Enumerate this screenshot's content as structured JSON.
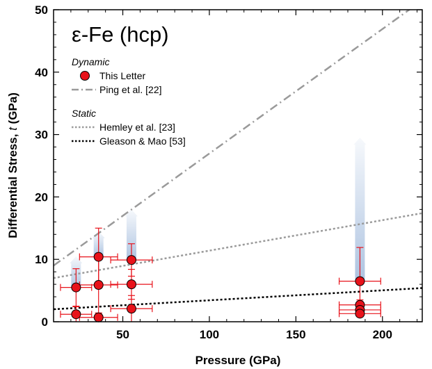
{
  "chart_data": {
    "type": "scatter",
    "title": "ε-Fe (hcp)",
    "xlabel": "Pressure (GPa)",
    "ylabel_main": "Differential Stress, ",
    "ylabel_var": "t",
    "ylabel_unit": " (GPa)",
    "xlim": [
      10,
      223
    ],
    "ylim": [
      0,
      50
    ],
    "xticks": [
      50,
      100,
      150,
      200
    ],
    "yticks": [
      0,
      10,
      20,
      30,
      40,
      50
    ],
    "grid": false,
    "legend": {
      "position": "top-left",
      "dynamic_heading": "Dynamic",
      "static_heading": "Static",
      "entries": {
        "this_letter": "This Letter",
        "ping": "Ping et al. [22]",
        "hemley": "Hemley et al. [23]",
        "gleason": "Gleason & Mao [53]"
      }
    },
    "points": [
      {
        "x": 23,
        "y": 5.5,
        "xerr": 9,
        "yerr": 3
      },
      {
        "x": 23,
        "y": 1.2,
        "xerr": 9,
        "yerr": 1.2
      },
      {
        "x": 36,
        "y": 10.4,
        "xerr": 11,
        "yerr": 4.6
      },
      {
        "x": 36,
        "y": 5.9,
        "xerr": 11,
        "yerr": 4.5
      },
      {
        "x": 36,
        "y": 0.7,
        "xerr": 11,
        "yerr": 0.7
      },
      {
        "x": 55,
        "y": 9.9,
        "xerr": 12,
        "yerr": 2.6
      },
      {
        "x": 55,
        "y": 6.0,
        "xerr": 12,
        "yerr": 2.4
      },
      {
        "x": 55,
        "y": 2.1,
        "xerr": 12,
        "yerr": 2.1
      },
      {
        "x": 187,
        "y": 6.5,
        "xerr": 12,
        "yerr": 5.4
      },
      {
        "x": 187,
        "y": 2.7,
        "xerr": 12,
        "yerr": 0.8
      },
      {
        "x": 187,
        "y": 1.9,
        "xerr": 12,
        "yerr": 0.6
      },
      {
        "x": 187,
        "y": 1.3,
        "xerr": 12,
        "yerr": 0.5
      }
    ],
    "arrows": [
      {
        "x": 23,
        "y_from": 5.5,
        "y_to": 10.5
      },
      {
        "x": 36,
        "y_from": 10.4,
        "y_to": 14.5
      },
      {
        "x": 55,
        "y_from": 9.9,
        "y_to": 18.0
      },
      {
        "x": 187,
        "y_from": 6.5,
        "y_to": 29.5
      }
    ],
    "lines": [
      {
        "key": "ping",
        "x": [
          10,
          223
        ],
        "y": [
          9.0,
          51.5
        ]
      },
      {
        "key": "hemley",
        "x": [
          10,
          223
        ],
        "y": [
          7.0,
          17.4
        ]
      },
      {
        "key": "gleason",
        "x": [
          10,
          223
        ],
        "y": [
          2.0,
          5.4
        ]
      }
    ],
    "colors": {
      "point_fill": "#e8121a",
      "point_edge": "#000000",
      "errorbar": "#e8121a",
      "ping_line": "#9a9a9a",
      "hemley_line": "#9a9a9a",
      "gleason_line": "#000000",
      "arrow": "#b5c9e3"
    }
  }
}
